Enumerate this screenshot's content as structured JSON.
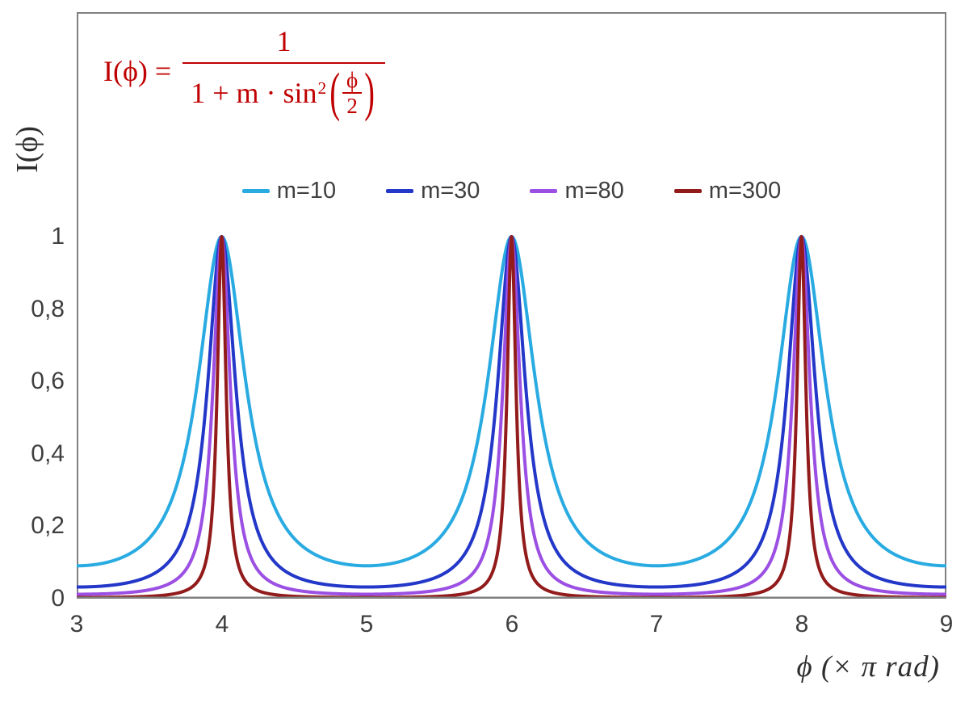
{
  "chart_data": {
    "type": "line",
    "title": "",
    "formula_text": "I(ϕ) = 1 / (1 + m·sin²(ϕ/2))",
    "formula_display": {
      "lhs": "I(ϕ) =",
      "numerator": "1",
      "den_prefix": "1 + m · sin",
      "den_exponent": "2",
      "paren_open": "(",
      "inner_numerator": "ϕ",
      "inner_denominator": "2",
      "paren_close": ")"
    },
    "formula_color": "#C00000",
    "xlabel": "ϕ  (× π rad)",
    "ylabel": "I(ϕ)",
    "x_range": [
      3,
      9
    ],
    "y_range_shown": [
      0,
      1
    ],
    "x_ticks": [
      "3",
      "4",
      "5",
      "6",
      "7",
      "8",
      "9"
    ],
    "y_ticks": [
      "1",
      "0,8",
      "0,6",
      "0,4",
      "0,2",
      "0"
    ],
    "y_tick_values": [
      1,
      0.8,
      0.6,
      0.4,
      0.2,
      0
    ],
    "axis_color": "#808080",
    "tick_label_color": "#3F3F3F",
    "grid": false,
    "legend_position": "top-center",
    "function": "I = 1 / (1 + m * sin^2(pi*x/2)), x expressed in units of pi radians",
    "series": [
      {
        "name": "m=10",
        "m": 10,
        "color": "#29ABE2"
      },
      {
        "name": "m=30",
        "m": 30,
        "color": "#2337C8"
      },
      {
        "name": "m=80",
        "m": 80,
        "color": "#9B4FE3"
      },
      {
        "name": "m=300",
        "m": 300,
        "color": "#921B1B"
      }
    ],
    "peaks_at_x": [
      4,
      6,
      8
    ],
    "peak_value": 1
  }
}
